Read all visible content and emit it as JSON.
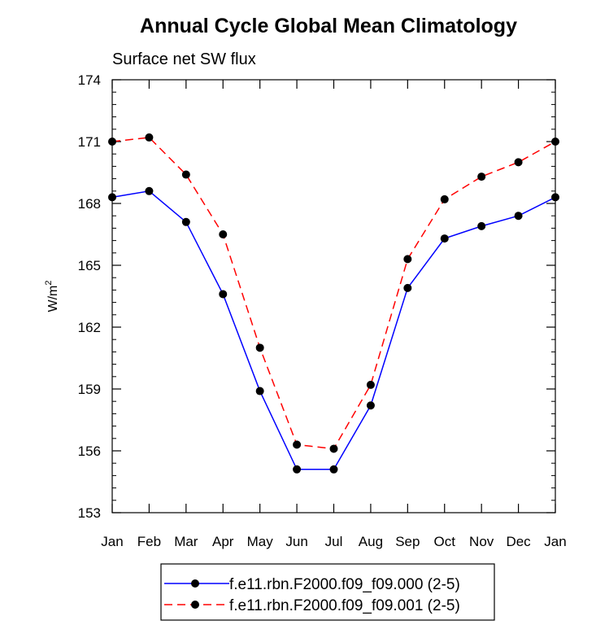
{
  "chart_data": {
    "type": "line",
    "title": "Annual Cycle Global Mean Climatology",
    "subtitle": "Surface net SW flux",
    "ylabel": "W/m",
    "ylabel_sup": "2",
    "xlabel": "",
    "categories": [
      "Jan",
      "Feb",
      "Mar",
      "Apr",
      "May",
      "Jun",
      "Jul",
      "Aug",
      "Sep",
      "Oct",
      "Nov",
      "Dec",
      "Jan"
    ],
    "yticks": [
      153,
      156,
      159,
      162,
      165,
      168,
      171,
      174
    ],
    "ylim": [
      153,
      174
    ],
    "grid": false,
    "legend_position": "bottom",
    "series": [
      {
        "name": "f.e11.rbn.F2000.f09_f09.000 (2-5)",
        "color": "#0000ff",
        "dash": "solid",
        "values": [
          168.3,
          168.6,
          167.1,
          163.6,
          158.9,
          155.1,
          155.1,
          158.2,
          163.9,
          166.3,
          166.9,
          167.4,
          168.3
        ]
      },
      {
        "name": "f.e11.rbn.F2000.f09_f09.001 (2-5)",
        "color": "#ff0000",
        "dash": "dashed",
        "values": [
          171.0,
          171.2,
          169.4,
          166.5,
          161.0,
          156.3,
          156.1,
          159.2,
          165.3,
          168.2,
          169.3,
          170.0,
          171.0
        ]
      }
    ]
  }
}
